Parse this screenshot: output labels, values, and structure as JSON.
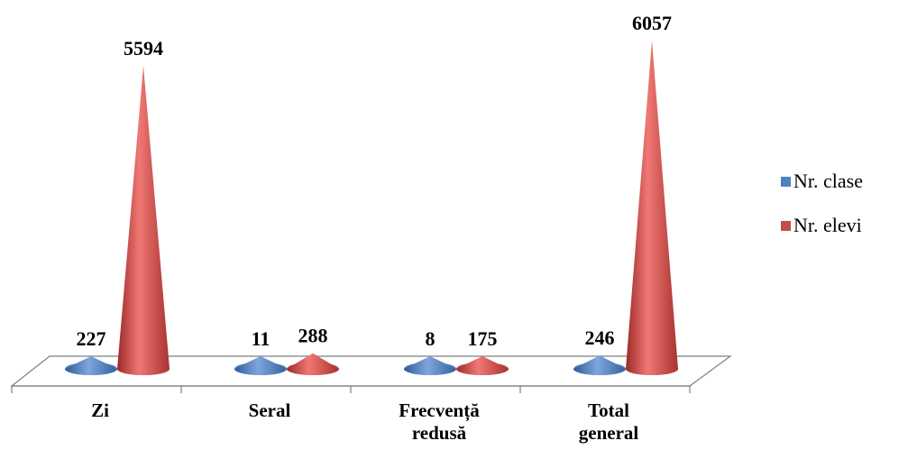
{
  "chart_data": {
    "type": "bar",
    "categories": [
      [
        "Zi"
      ],
      [
        "Seral"
      ],
      [
        "Frecvență",
        "redusă"
      ],
      [
        "Total",
        "general"
      ]
    ],
    "series": [
      {
        "name": "Nr. clase",
        "values": [
          227,
          11,
          8,
          246
        ],
        "color": "#4f81bd"
      },
      {
        "name": "Nr. elevi",
        "values": [
          5594,
          288,
          175,
          6057
        ],
        "color": "#c0504d"
      }
    ],
    "shape": "cone-3d",
    "legend_position": "right"
  }
}
